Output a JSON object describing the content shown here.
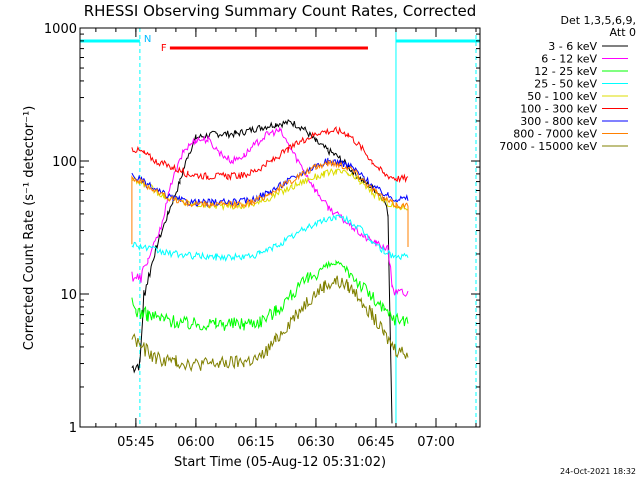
{
  "chart_data": {
    "type": "line",
    "title": "RHESSI Observing Summary Count Rates, Corrected",
    "xlabel": "Start Time (05-Aug-12 05:31:02)",
    "ylabel": "Corrected Count Rate (s⁻¹ detector⁻¹)",
    "yscale": "log",
    "ylim": [
      1,
      1000
    ],
    "y_ticks": [
      {
        "value": 1,
        "label": "1"
      },
      {
        "value": 10,
        "label": "10"
      },
      {
        "value": 100,
        "label": "100"
      },
      {
        "value": 1000,
        "label": "1000"
      }
    ],
    "xlim": [
      "05:31:02",
      "07:11:00"
    ],
    "x_ticks": [
      {
        "value": "05:45",
        "label": "05:45"
      },
      {
        "value": "06:00",
        "label": "06:00"
      },
      {
        "value": "06:15",
        "label": "06:15"
      },
      {
        "value": "06:30",
        "label": "06:30"
      },
      {
        "value": "06:45",
        "label": "06:45"
      },
      {
        "value": "07:00",
        "label": "07:00"
      }
    ],
    "legend_header": [
      "Det 1,3,5,6,9,",
      "Att 0"
    ],
    "legend_position": "right",
    "series": [
      {
        "name": "3 - 6 keV",
        "color": "#000000",
        "points": [
          [
            "05:44",
            2.8
          ],
          [
            "05:46",
            3
          ],
          [
            "05:47",
            10
          ],
          [
            "05:50",
            22
          ],
          [
            "05:53",
            40
          ],
          [
            "05:56",
            70
          ],
          [
            "05:58",
            110
          ],
          [
            "06:00",
            150
          ],
          [
            "06:05",
            160
          ],
          [
            "06:10",
            160
          ],
          [
            "06:15",
            175
          ],
          [
            "06:20",
            190
          ],
          [
            "06:24",
            195
          ],
          [
            "06:27",
            175
          ],
          [
            "06:30",
            140
          ],
          [
            "06:33",
            120
          ],
          [
            "06:36",
            105
          ],
          [
            "06:39",
            85
          ],
          [
            "06:42",
            70
          ],
          [
            "06:45",
            60
          ],
          [
            "06:47",
            52
          ],
          [
            "06:48",
            40
          ],
          [
            "06:49",
            1.2
          ]
        ]
      },
      {
        "name": "6 - 12 keV",
        "color": "#ff00ff",
        "points": [
          [
            "05:44",
            14
          ],
          [
            "05:46",
            13
          ],
          [
            "05:48",
            18
          ],
          [
            "05:51",
            30
          ],
          [
            "05:54",
            70
          ],
          [
            "05:57",
            120
          ],
          [
            "06:00",
            145
          ],
          [
            "06:03",
            145
          ],
          [
            "06:06",
            115
          ],
          [
            "06:09",
            100
          ],
          [
            "06:12",
            110
          ],
          [
            "06:15",
            135
          ],
          [
            "06:18",
            160
          ],
          [
            "06:21",
            170
          ],
          [
            "06:24",
            120
          ],
          [
            "06:27",
            85
          ],
          [
            "06:30",
            60
          ],
          [
            "06:33",
            45
          ],
          [
            "06:36",
            38
          ],
          [
            "06:39",
            32
          ],
          [
            "06:42",
            27
          ],
          [
            "06:45",
            24
          ],
          [
            "06:48",
            22
          ],
          [
            "06:49",
            12
          ],
          [
            "06:50",
            10
          ],
          [
            "06:53",
            10
          ]
        ]
      },
      {
        "name": "12 - 25 keV",
        "color": "#00ff00",
        "points": [
          [
            "05:44",
            8.5
          ],
          [
            "05:45",
            7.5
          ],
          [
            "05:48",
            7
          ],
          [
            "05:52",
            6.5
          ],
          [
            "05:58",
            6
          ],
          [
            "06:05",
            6
          ],
          [
            "06:12",
            6
          ],
          [
            "06:16",
            6.3
          ],
          [
            "06:20",
            7.5
          ],
          [
            "06:24",
            10
          ],
          [
            "06:28",
            13
          ],
          [
            "06:32",
            16
          ],
          [
            "06:35",
            17
          ],
          [
            "06:38",
            15
          ],
          [
            "06:41",
            12
          ],
          [
            "06:44",
            9.5
          ],
          [
            "06:47",
            7.5
          ],
          [
            "06:50",
            6.5
          ],
          [
            "06:53",
            6.5
          ]
        ]
      },
      {
        "name": "25 - 50 keV",
        "color": "#00ffff",
        "points": [
          [
            "05:44",
            24
          ],
          [
            "05:48",
            22
          ],
          [
            "05:52",
            20.5
          ],
          [
            "05:58",
            19.5
          ],
          [
            "06:05",
            19
          ],
          [
            "06:12",
            19
          ],
          [
            "06:16",
            20
          ],
          [
            "06:20",
            23
          ],
          [
            "06:24",
            27
          ],
          [
            "06:28",
            32
          ],
          [
            "06:32",
            36
          ],
          [
            "06:35",
            38
          ],
          [
            "06:38",
            36
          ],
          [
            "06:41",
            31
          ],
          [
            "06:44",
            25
          ],
          [
            "06:47",
            21
          ],
          [
            "06:50",
            19
          ],
          [
            "06:53",
            19
          ]
        ]
      },
      {
        "name": "50 - 100 keV",
        "color": "#dddd00",
        "points": [
          [
            "05:44",
            72
          ],
          [
            "05:48",
            65
          ],
          [
            "05:52",
            55
          ],
          [
            "05:58",
            48
          ],
          [
            "06:05",
            46
          ],
          [
            "06:12",
            46
          ],
          [
            "06:16",
            49
          ],
          [
            "06:20",
            56
          ],
          [
            "06:24",
            64
          ],
          [
            "06:28",
            73
          ],
          [
            "06:32",
            80
          ],
          [
            "06:35",
            84
          ],
          [
            "06:38",
            80
          ],
          [
            "06:41",
            70
          ],
          [
            "06:44",
            58
          ],
          [
            "06:47",
            50
          ],
          [
            "06:50",
            45
          ],
          [
            "06:53",
            45
          ]
        ]
      },
      {
        "name": "100 - 300 keV",
        "color": "#ff0000",
        "points": [
          [
            "05:44",
            125
          ],
          [
            "05:47",
            115
          ],
          [
            "05:50",
            100
          ],
          [
            "05:54",
            90
          ],
          [
            "05:58",
            80
          ],
          [
            "06:03",
            77
          ],
          [
            "06:08",
            77
          ],
          [
            "06:12",
            78
          ],
          [
            "06:15",
            85
          ],
          [
            "06:19",
            100
          ],
          [
            "06:23",
            122
          ],
          [
            "06:27",
            145
          ],
          [
            "06:31",
            165
          ],
          [
            "06:35",
            170
          ],
          [
            "06:38",
            160
          ],
          [
            "06:41",
            130
          ],
          [
            "06:44",
            100
          ],
          [
            "06:47",
            80
          ],
          [
            "06:50",
            74
          ],
          [
            "06:53",
            74
          ]
        ]
      },
      {
        "name": "300 - 800 keV",
        "color": "#0000ff",
        "points": [
          [
            "05:44",
            78
          ],
          [
            "05:47",
            70
          ],
          [
            "05:50",
            60
          ],
          [
            "05:54",
            53
          ],
          [
            "05:58",
            49
          ],
          [
            "06:04",
            49
          ],
          [
            "06:10",
            49
          ],
          [
            "06:14",
            51
          ],
          [
            "06:18",
            58
          ],
          [
            "06:22",
            68
          ],
          [
            "06:26",
            80
          ],
          [
            "06:30",
            92
          ],
          [
            "06:33",
            100
          ],
          [
            "06:36",
            98
          ],
          [
            "06:39",
            90
          ],
          [
            "06:42",
            75
          ],
          [
            "06:45",
            62
          ],
          [
            "06:48",
            55
          ],
          [
            "06:50",
            52
          ],
          [
            "06:53",
            52
          ]
        ]
      },
      {
        "name": "800 - 7000 keV",
        "color": "#ff8000",
        "points": [
          [
            "05:44",
            25
          ],
          [
            "05:44",
            75
          ],
          [
            "05:47",
            68
          ],
          [
            "05:50",
            59
          ],
          [
            "05:54",
            52
          ],
          [
            "05:58",
            48
          ],
          [
            "06:04",
            47
          ],
          [
            "06:10",
            47
          ],
          [
            "06:14",
            49
          ],
          [
            "06:18",
            56
          ],
          [
            "06:22",
            66
          ],
          [
            "06:26",
            78
          ],
          [
            "06:30",
            90
          ],
          [
            "06:33",
            97
          ],
          [
            "06:36",
            95
          ],
          [
            "06:39",
            87
          ],
          [
            "06:42",
            72
          ],
          [
            "06:45",
            58
          ],
          [
            "06:48",
            50
          ],
          [
            "06:50",
            47
          ],
          [
            "06:53",
            46
          ],
          [
            "06:53",
            24
          ]
        ]
      },
      {
        "name": "7000 - 15000 keV",
        "color": "#808000",
        "points": [
          [
            "05:44",
            4.8
          ],
          [
            "05:47",
            3.9
          ],
          [
            "05:50",
            3.3
          ],
          [
            "05:55",
            3.1
          ],
          [
            "06:00",
            3
          ],
          [
            "06:06",
            3
          ],
          [
            "06:12",
            3.1
          ],
          [
            "06:16",
            3.3
          ],
          [
            "06:20",
            4.5
          ],
          [
            "06:24",
            6.5
          ],
          [
            "06:28",
            9
          ],
          [
            "06:32",
            11.5
          ],
          [
            "06:35",
            12.5
          ],
          [
            "06:38",
            11.5
          ],
          [
            "06:41",
            9.5
          ],
          [
            "06:44",
            7
          ],
          [
            "06:47",
            5
          ],
          [
            "06:50",
            3.8
          ],
          [
            "06:53",
            3.6
          ]
        ]
      }
    ],
    "flags": [
      {
        "label": "N",
        "color": "#00bbff",
        "start": "05:46",
        "end": "05:46"
      },
      {
        "label": "F",
        "color": "#ff0000",
        "start": "05:51",
        "end": "06:43"
      }
    ],
    "night_bars": [
      {
        "color": "#00ffff",
        "start": "05:31:02",
        "end": "05:46"
      },
      {
        "color": "#00ffff",
        "start": "06:50",
        "end": "07:11"
      }
    ],
    "vlines": [
      {
        "time": "05:31:02",
        "color": "#00ffff",
        "style": "solid"
      },
      {
        "time": "05:46",
        "color": "#00ffff",
        "style": "dashed"
      },
      {
        "time": "06:50",
        "color": "#00ffff",
        "style": "solid"
      },
      {
        "time": "07:10",
        "color": "#00ffff",
        "style": "dashed"
      }
    ],
    "footer": "24-Oct-2021 18:32"
  }
}
